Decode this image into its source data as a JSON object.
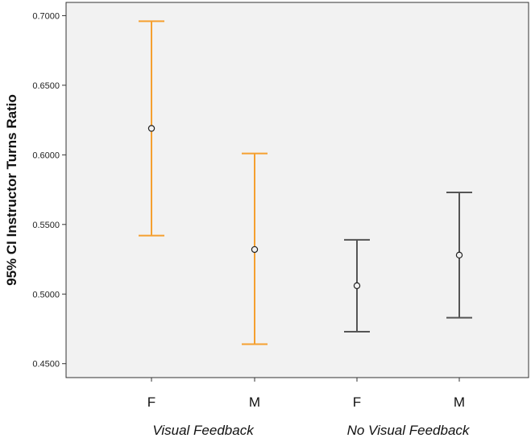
{
  "chart_data": {
    "type": "errorbar",
    "ylabel": "95% CI Instructor Turns Ratio",
    "ylim": [
      0.44,
      0.7095
    ],
    "yticks": [
      "0.4500",
      "0.5000",
      "0.5500",
      "0.6000",
      "0.6500",
      "0.7000"
    ],
    "categories": [
      "F",
      "M",
      "F",
      "M"
    ],
    "groups": [
      {
        "label": "Visual Feedback",
        "color": "#f5a030"
      },
      {
        "label": "No Visual Feedback",
        "color": "#555555"
      }
    ],
    "points": [
      {
        "category": "F",
        "group": 0,
        "mean": 0.619,
        "lower": 0.542,
        "upper": 0.696
      },
      {
        "category": "M",
        "group": 0,
        "mean": 0.532,
        "lower": 0.464,
        "upper": 0.601
      },
      {
        "category": "F",
        "group": 1,
        "mean": 0.506,
        "lower": 0.473,
        "upper": 0.539
      },
      {
        "category": "M",
        "group": 1,
        "mean": 0.528,
        "lower": 0.483,
        "upper": 0.573
      }
    ],
    "plot_background": "#f2f2f2",
    "grid": false
  }
}
